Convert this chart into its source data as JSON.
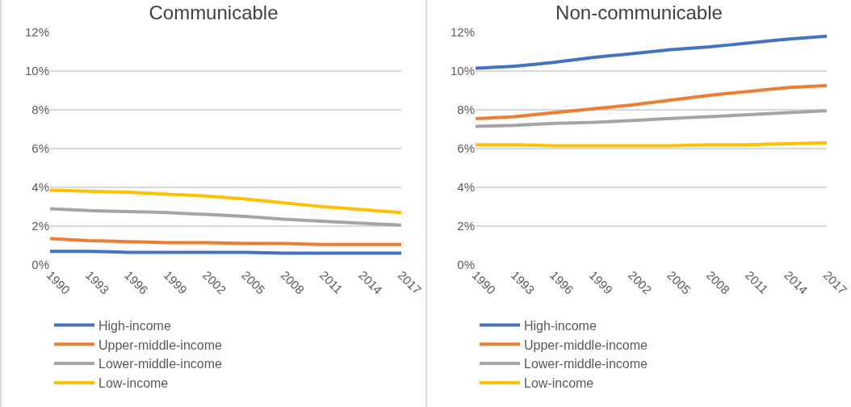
{
  "chart_data": [
    {
      "type": "line",
      "title": "Communicable",
      "x": [
        1990,
        1993,
        1996,
        1999,
        2002,
        2005,
        2008,
        2011,
        2014,
        2017
      ],
      "xlim": [
        1990,
        2017
      ],
      "xticks": [
        1990,
        1993,
        1996,
        1999,
        2002,
        2005,
        2008,
        2011,
        2014,
        2017
      ],
      "ylim": [
        0,
        12
      ],
      "yticks": [
        {
          "value": 0,
          "label": "0%"
        },
        {
          "value": 2,
          "label": "2%"
        },
        {
          "value": 4,
          "label": "4%"
        },
        {
          "value": 6,
          "label": "6%"
        },
        {
          "value": 8,
          "label": "8%"
        },
        {
          "value": 10,
          "label": "10%"
        },
        {
          "value": 12,
          "label": "12%"
        }
      ],
      "grid": "y",
      "legend": "bottom",
      "marker": "none",
      "series": [
        {
          "name": "High-income",
          "color": "#4472c4",
          "values": [
            0.7,
            0.7,
            0.65,
            0.65,
            0.65,
            0.65,
            0.6,
            0.6,
            0.6,
            0.6
          ]
        },
        {
          "name": "Upper-middle-income",
          "color": "#ed7d31",
          "values": [
            1.35,
            1.25,
            1.2,
            1.15,
            1.15,
            1.1,
            1.1,
            1.05,
            1.05,
            1.05
          ]
        },
        {
          "name": "Lower-middle-income",
          "color": "#a5a5a5",
          "values": [
            2.9,
            2.8,
            2.75,
            2.7,
            2.6,
            2.5,
            2.35,
            2.25,
            2.15,
            2.05
          ]
        },
        {
          "name": "Low-income",
          "color": "#ffc000",
          "values": [
            3.85,
            3.8,
            3.75,
            3.65,
            3.55,
            3.4,
            3.2,
            3.0,
            2.85,
            2.7
          ]
        }
      ]
    },
    {
      "type": "line",
      "title": "Non-communicable",
      "x": [
        1990,
        1993,
        1996,
        1999,
        2002,
        2005,
        2008,
        2011,
        2014,
        2017
      ],
      "xlim": [
        1990,
        2017
      ],
      "xticks": [
        1990,
        1993,
        1996,
        1999,
        2002,
        2005,
        2008,
        2011,
        2014,
        2017
      ],
      "ylim": [
        0,
        12
      ],
      "yticks": [
        {
          "value": 0,
          "label": "0%"
        },
        {
          "value": 2,
          "label": "2%"
        },
        {
          "value": 4,
          "label": "4%"
        },
        {
          "value": 6,
          "label": "6%"
        },
        {
          "value": 8,
          "label": "8%"
        },
        {
          "value": 10,
          "label": "10%"
        },
        {
          "value": 12,
          "label": "12%"
        }
      ],
      "grid": "y",
      "legend": "bottom",
      "marker": "none",
      "series": [
        {
          "name": "High-income",
          "color": "#4472c4",
          "values": [
            10.15,
            10.25,
            10.45,
            10.7,
            10.9,
            11.1,
            11.25,
            11.45,
            11.65,
            11.8
          ]
        },
        {
          "name": "Upper-middle-income",
          "color": "#ed7d31",
          "values": [
            7.55,
            7.65,
            7.85,
            8.05,
            8.25,
            8.5,
            8.75,
            8.95,
            9.15,
            9.25
          ]
        },
        {
          "name": "Lower-middle-income",
          "color": "#a5a5a5",
          "values": [
            7.15,
            7.2,
            7.3,
            7.35,
            7.45,
            7.55,
            7.65,
            7.75,
            7.85,
            7.95
          ]
        },
        {
          "name": "Low-income",
          "color": "#ffc000",
          "values": [
            6.2,
            6.2,
            6.15,
            6.15,
            6.15,
            6.15,
            6.2,
            6.2,
            6.25,
            6.3
          ]
        }
      ]
    }
  ]
}
